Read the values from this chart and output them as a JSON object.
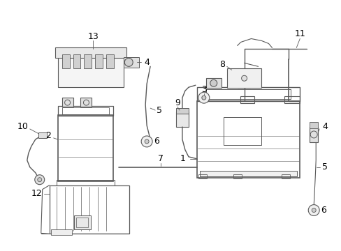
{
  "background_color": "#ffffff",
  "line_color": "#5a5a5a",
  "label_color": "#000000",
  "figsize": [
    4.89,
    3.6
  ],
  "dpi": 100,
  "img_extent": [
    0,
    489,
    0,
    360
  ]
}
